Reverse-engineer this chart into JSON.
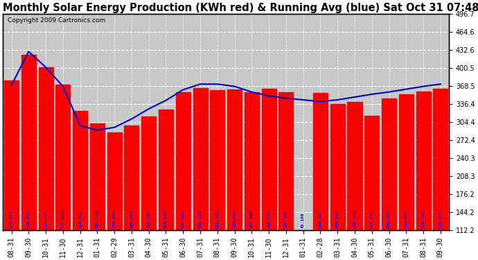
{
  "title": "Monthly Solar Energy Production (KWh red) & Running Avg (blue) Sat Oct 31 07:48",
  "copyright": "Copyright 2009 Cartronics.com",
  "categories": [
    "08-31",
    "09-30",
    "10-31",
    "11-30",
    "12-31",
    "01-31",
    "02-29",
    "03-31",
    "04-30",
    "05-31",
    "06-30",
    "07-31",
    "08-31",
    "09-30",
    "10-31",
    "11-30",
    "12-31",
    "01-31",
    "02-28",
    "03-31",
    "04-30",
    "05-31",
    "06-30",
    "07-31",
    "08-31",
    "09-30"
  ],
  "bar_values": [
    378.672,
    424.576,
    401.47,
    371.006,
    324.012,
    301.74,
    285.59,
    298.153,
    314.243,
    326.114,
    357.081,
    364.379,
    361.321,
    362.071,
    357.364,
    364.154,
    357.154,
    43.186,
    356.537,
    336.59,
    340.246,
    315.346,
    346.394,
    354.3,
    358.241,
    364.07
  ],
  "avg_values": [
    370,
    430,
    402,
    368,
    298,
    290,
    295,
    310,
    328,
    343,
    362,
    372,
    372,
    368,
    358,
    351,
    347,
    344,
    341,
    344,
    349,
    354,
    358,
    363,
    368,
    372
  ],
  "bar_color": "#FF0000",
  "avg_color": "#0000CC",
  "plot_bg_color": "#C8C8C8",
  "fig_bg_color": "#FFFFFF",
  "grid_color": "#FFFFFF",
  "text_color_labels": "#0000FF",
  "ymin": 112.2,
  "ymax": 496.7,
  "yticks_right": [
    112.2,
    144.2,
    176.2,
    208.3,
    240.3,
    272.4,
    304.4,
    336.4,
    368.5,
    400.5,
    432.6,
    464.6,
    496.7
  ],
  "title_fontsize": 10.5,
  "tick_fontsize": 7,
  "copyright_fontsize": 6.5,
  "value_label_fontsize": 4.5
}
